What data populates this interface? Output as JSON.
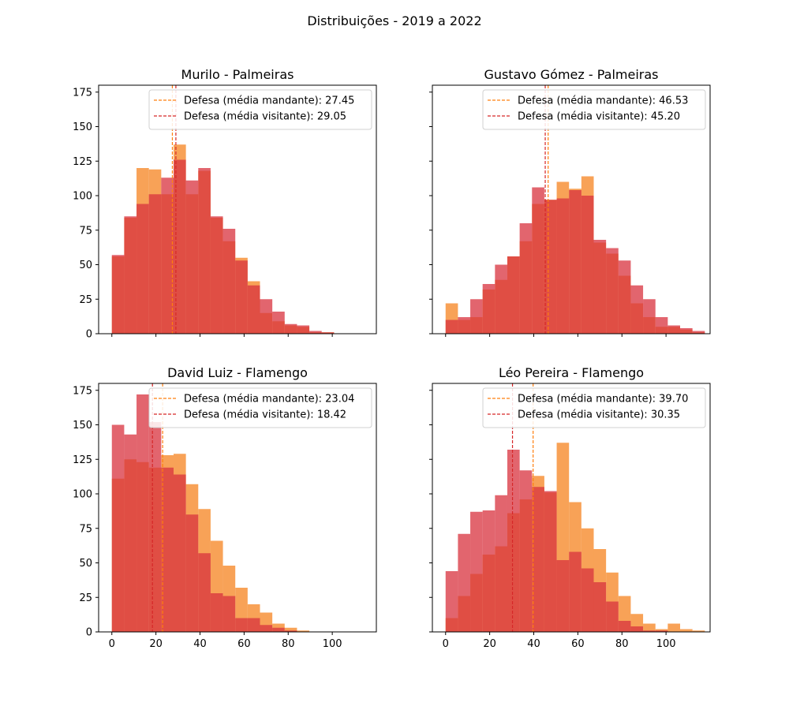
{
  "figure": {
    "suptitle": "Distribuições - 2019 a 2022"
  },
  "colors": {
    "home_bar": "#f7923a",
    "away_bar": "#d8323d",
    "home_line": "#ff7f0e",
    "away_line": "#d62728"
  },
  "chart_data": [
    {
      "type": "bar",
      "title": "Murilo - Palmeiras",
      "xlim": [
        -6,
        120
      ],
      "ylim": [
        0,
        180
      ],
      "xticks": [],
      "yticks": [
        0,
        25,
        50,
        75,
        100,
        125,
        150,
        175
      ],
      "bin_width": 5.6,
      "bin_start": 0,
      "legend_position": "upper-right",
      "series": [
        {
          "name": "Defesa (média mandante): 27.45",
          "role": "home",
          "mean": 27.45,
          "values": [
            56,
            84,
            120,
            119,
            101,
            137,
            101,
            118,
            84,
            67,
            55,
            38,
            15,
            9,
            6,
            5,
            1,
            1
          ]
        },
        {
          "name": "Defesa (média visitante): 29.05",
          "role": "away",
          "mean": 29.05,
          "values": [
            57,
            85,
            94,
            101,
            113,
            126,
            111,
            120,
            85,
            76,
            53,
            35,
            25,
            16,
            7,
            6,
            2,
            1
          ]
        }
      ]
    },
    {
      "type": "bar",
      "title": "Gustavo Gómez - Palmeiras",
      "xlim": [
        -6,
        120
      ],
      "ylim": [
        0,
        180
      ],
      "xticks": [],
      "yticks": [],
      "bin_width": 5.6,
      "bin_start": 0,
      "legend_position": "upper-right",
      "series": [
        {
          "name": "Defesa (média mandante): 46.53",
          "role": "home",
          "mean": 46.53,
          "values": [
            22,
            10,
            12,
            32,
            39,
            56,
            67,
            94,
            97,
            110,
            105,
            114,
            66,
            58,
            42,
            22,
            12,
            5,
            5,
            3,
            1
          ]
        },
        {
          "name": "Defesa (média visitante): 45.20",
          "role": "away",
          "mean": 45.2,
          "values": [
            10,
            12,
            25,
            36,
            50,
            56,
            80,
            106,
            97,
            98,
            104,
            100,
            68,
            62,
            53,
            35,
            25,
            12,
            6,
            4,
            2
          ]
        }
      ]
    },
    {
      "type": "bar",
      "title": "David Luiz - Flamengo",
      "xlim": [
        -6,
        120
      ],
      "ylim": [
        0,
        180
      ],
      "xticks": [
        0,
        20,
        40,
        60,
        80,
        100
      ],
      "yticks": [
        0,
        25,
        50,
        75,
        100,
        125,
        150,
        175
      ],
      "bin_width": 5.6,
      "bin_start": 0,
      "legend_position": "upper-right",
      "series": [
        {
          "name": "Defesa (média mandante): 23.04",
          "role": "home",
          "mean": 23.04,
          "values": [
            111,
            125,
            123,
            119,
            128,
            129,
            107,
            89,
            66,
            48,
            32,
            20,
            14,
            6,
            3,
            1
          ]
        },
        {
          "name": "Defesa (média visitante): 18.42",
          "role": "away",
          "mean": 18.42,
          "values": [
            150,
            143,
            172,
            152,
            119,
            114,
            85,
            57,
            28,
            26,
            10,
            10,
            5,
            3,
            1
          ]
        }
      ]
    },
    {
      "type": "bar",
      "title": "Léo Pereira - Flamengo",
      "xlim": [
        -6,
        120
      ],
      "ylim": [
        0,
        180
      ],
      "xticks": [
        0,
        20,
        40,
        60,
        80,
        100
      ],
      "yticks": [],
      "bin_width": 5.6,
      "bin_start": 0,
      "legend_position": "upper-right",
      "series": [
        {
          "name": "Defesa (média mandante): 39.70",
          "role": "home",
          "mean": 39.7,
          "values": [
            10,
            26,
            42,
            56,
            62,
            86,
            96,
            113,
            101,
            137,
            94,
            75,
            60,
            43,
            26,
            13,
            6,
            2,
            6,
            2,
            1
          ]
        },
        {
          "name": "Defesa (média visitante): 30.35",
          "role": "away",
          "mean": 30.35,
          "values": [
            44,
            71,
            87,
            88,
            99,
            132,
            117,
            105,
            102,
            52,
            58,
            46,
            36,
            22,
            8,
            4,
            1,
            1
          ]
        }
      ]
    }
  ]
}
